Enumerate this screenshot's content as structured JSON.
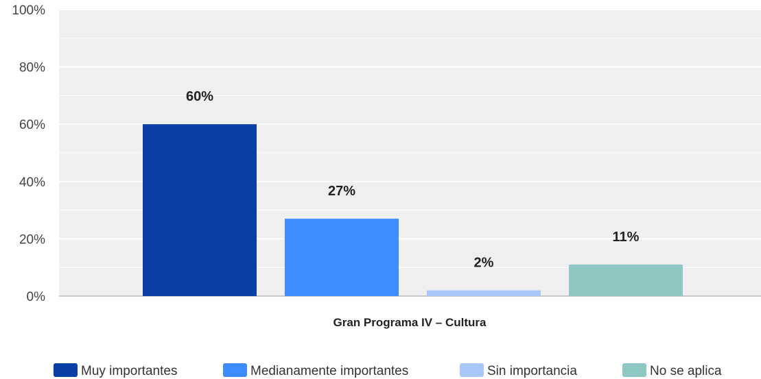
{
  "chart_data": {
    "type": "bar",
    "title": "",
    "xlabel": "Gran Programa IV – Cultura",
    "ylabel": "",
    "ylim": [
      0,
      100
    ],
    "yticks": [
      0,
      20,
      40,
      60,
      80,
      100
    ],
    "ytick_labels": [
      "0%",
      "20%",
      "40%",
      "60%",
      "80%",
      "100%"
    ],
    "grid": true,
    "legend_position": "bottom",
    "categories": [
      "Gran Programa IV – Cultura"
    ],
    "series": [
      {
        "name": "Muy importantes",
        "values": [
          60
        ],
        "label": "60%",
        "color": "#0a3fa6"
      },
      {
        "name": "Medianamente importantes",
        "values": [
          27
        ],
        "label": "27%",
        "color": "#3d8bfd"
      },
      {
        "name": "Sin importancia",
        "values": [
          2
        ],
        "label": "2%",
        "color": "#a9c8f7"
      },
      {
        "name": "No se aplica",
        "values": [
          11
        ],
        "label": "11%",
        "color": "#8fc7c3"
      }
    ],
    "plot_background": "#efefef",
    "gridline_color": "#ffffff"
  }
}
